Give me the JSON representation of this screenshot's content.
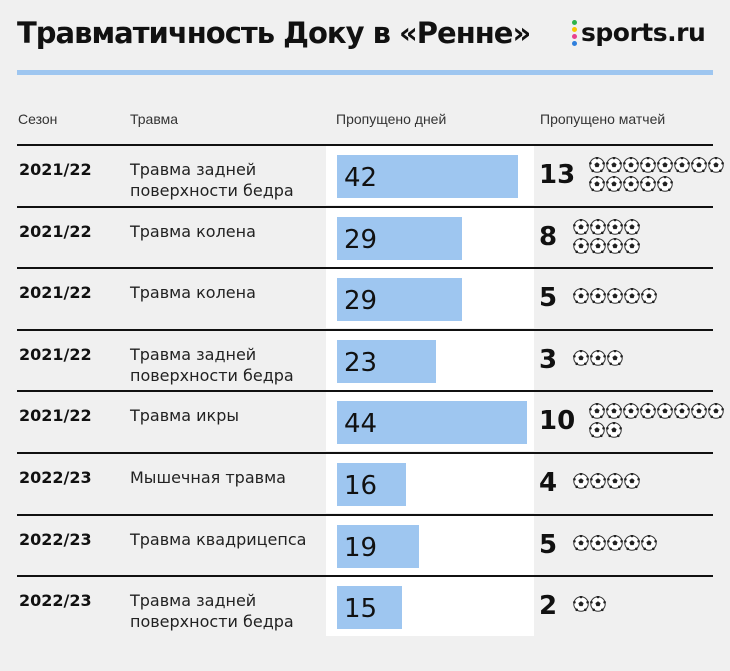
{
  "header": {
    "title": "Травматичность Доку в «Ренне»",
    "logo_text": "sports.ru",
    "logo_dot_colors": [
      "#2db34a",
      "#f7c600",
      "#e8418e",
      "#2f7fdc"
    ]
  },
  "columns": {
    "season": "Сезон",
    "injury": "Травма",
    "days": "Пропущено дней",
    "matches": "Пропущено матчей"
  },
  "colors": {
    "bar": "#9ec6f0",
    "rule": "#9ec6f0",
    "background": "#f0f0f0"
  },
  "chart_data": {
    "type": "table",
    "title": "Травматичность Доку в «Ренне»",
    "days_scale_max": 44,
    "rows": [
      {
        "season": "2021/22",
        "injury": "Травма задней поверхности бедра",
        "days": 42,
        "matches": 13
      },
      {
        "season": "2021/22",
        "injury": "Травма колена",
        "days": 29,
        "matches": 8
      },
      {
        "season": "2021/22",
        "injury": "Травма колена",
        "days": 29,
        "matches": 5
      },
      {
        "season": "2021/22",
        "injury": "Травма задней поверхности бедра",
        "days": 23,
        "matches": 3
      },
      {
        "season": "2021/22",
        "injury": "Травма икры",
        "days": 44,
        "matches": 10
      },
      {
        "season": "2022/23",
        "injury": "Мышечная травма",
        "days": 16,
        "matches": 4
      },
      {
        "season": "2022/23",
        "injury": "Травма квадрицепса",
        "days": 19,
        "matches": 5
      },
      {
        "season": "2022/23",
        "injury": "Травма задней поверхности бедра",
        "days": 15,
        "matches": 2
      }
    ]
  }
}
